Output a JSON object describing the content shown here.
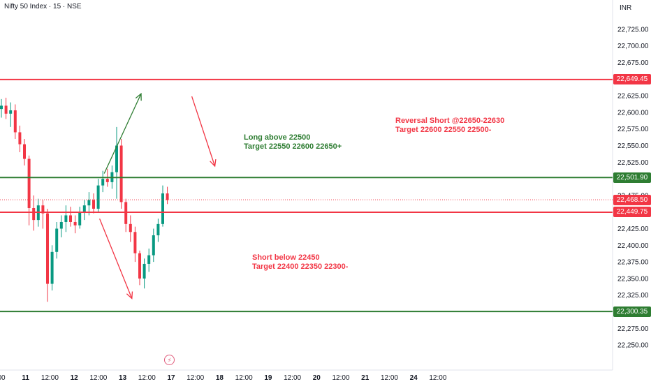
{
  "header": {
    "title": "Nifty 50 Index · 15 · NSE",
    "currency": "INR"
  },
  "chart_data": {
    "type": "candlestick",
    "symbol": "Nifty 50 Index",
    "interval": "15",
    "exchange": "NSE",
    "ylim": [
      22237.5,
      22737.5
    ],
    "y_ticks": [
      "22,725.00",
      "22,700.00",
      "22,675.00",
      "22,650.00",
      "22,625.00",
      "22,600.00",
      "22,575.00",
      "22,550.00",
      "22,525.00",
      "22,500.00",
      "22,475.00",
      "22,450.00",
      "22,425.00",
      "22,400.00",
      "22,375.00",
      "22,350.00",
      "22,325.00",
      "22,300.00",
      "22,275.00",
      "22,250.00"
    ],
    "y_tick_values": [
      22725,
      22700,
      22675,
      22650,
      22625,
      22600,
      22575,
      22550,
      22525,
      22500,
      22475,
      22450,
      22425,
      22400,
      22375,
      22350,
      22325,
      22300,
      22275,
      22250
    ],
    "x_ticks": [
      "00",
      "11",
      "12:00",
      "12",
      "12:00",
      "13",
      "12:00",
      "17",
      "12:00",
      "18",
      "12:00",
      "19",
      "12:00",
      "20",
      "12:00",
      "21",
      "12:00",
      "24",
      "12:00"
    ],
    "x_tick_index": [
      0,
      4,
      8,
      12,
      16,
      20,
      24,
      28,
      32,
      36,
      40,
      44,
      48,
      52,
      56,
      60,
      64,
      68,
      72
    ],
    "current_price": {
      "value": 22468.5,
      "label": "22,468.50"
    },
    "levels": [
      {
        "value": 22649.45,
        "label": "22,649.45",
        "color": "#f23645"
      },
      {
        "value": 22501.9,
        "label": "22,501.90",
        "color": "#2e7d32"
      },
      {
        "value": 22449.75,
        "label": "22,449.75",
        "color": "#f23645"
      },
      {
        "value": 22300.35,
        "label": "22,300.35",
        "color": "#2e7d32"
      }
    ],
    "annotations": [
      {
        "line1": "Long above 22500",
        "line2": "Target 22550 22600 22650+",
        "color": "#2e7d32"
      },
      {
        "line1": "Reversal Short @22650-22630",
        "line2": "Target 22600 22550 22500-",
        "color": "#f23645"
      },
      {
        "line1": "Short below 22450",
        "line2": "Target 22400 22350 22300-",
        "color": "#f23645"
      }
    ],
    "arrows": [
      {
        "color": "#2e7d32",
        "from": {
          "i": 22,
          "y": 22508
        },
        "to": {
          "i": 30,
          "y": 22628
        }
      },
      {
        "color": "#f23645",
        "from": {
          "i": 41,
          "y": 22624
        },
        "to": {
          "i": 46,
          "y": 22519
        }
      },
      {
        "color": "#f23645",
        "from": {
          "i": 21,
          "y": 22440
        },
        "to": {
          "i": 28,
          "y": 22320
        }
      }
    ],
    "candles": [
      [
        22605,
        22620,
        22592,
        22610
      ],
      [
        22610,
        22622,
        22590,
        22598
      ],
      [
        22598,
        22615,
        22578,
        22603
      ],
      [
        22603,
        22612,
        22560,
        22570
      ],
      [
        22570,
        22580,
        22540,
        22552
      ],
      [
        22552,
        22560,
        22520,
        22530
      ],
      [
        22530,
        22535,
        22430,
        22456
      ],
      [
        22456,
        22475,
        22422,
        22438
      ],
      [
        22438,
        22470,
        22428,
        22460
      ],
      [
        22460,
        22468,
        22425,
        22448
      ],
      [
        22448,
        22455,
        22315,
        22342
      ],
      [
        22342,
        22400,
        22332,
        22390
      ],
      [
        22390,
        22435,
        22380,
        22425
      ],
      [
        22425,
        22445,
        22412,
        22435
      ],
      [
        22435,
        22460,
        22420,
        22445
      ],
      [
        22445,
        22458,
        22428,
        22435
      ],
      [
        22435,
        22445,
        22418,
        22430
      ],
      [
        22430,
        22458,
        22425,
        22450
      ],
      [
        22450,
        22468,
        22438,
        22460
      ],
      [
        22460,
        22480,
        22445,
        22468
      ],
      [
        22468,
        22478,
        22448,
        22455
      ],
      [
        22455,
        22500,
        22450,
        22490
      ],
      [
        22490,
        22512,
        22480,
        22500
      ],
      [
        22500,
        22515,
        22488,
        22495
      ],
      [
        22495,
        22520,
        22485,
        22510
      ],
      [
        22510,
        22578,
        22470,
        22550
      ],
      [
        22550,
        22560,
        22455,
        22465
      ],
      [
        22465,
        22470,
        22420,
        22432
      ],
      [
        22432,
        22445,
        22405,
        22420
      ],
      [
        22420,
        22428,
        22375,
        22388
      ],
      [
        22388,
        22392,
        22340,
        22350
      ],
      [
        22350,
        22380,
        22335,
        22372
      ],
      [
        22372,
        22395,
        22360,
        22385
      ],
      [
        22385,
        22425,
        22375,
        22415
      ],
      [
        22415,
        22440,
        22405,
        22432
      ],
      [
        22432,
        22490,
        22428,
        22478
      ],
      [
        22478,
        22488,
        22462,
        22468
      ]
    ]
  }
}
